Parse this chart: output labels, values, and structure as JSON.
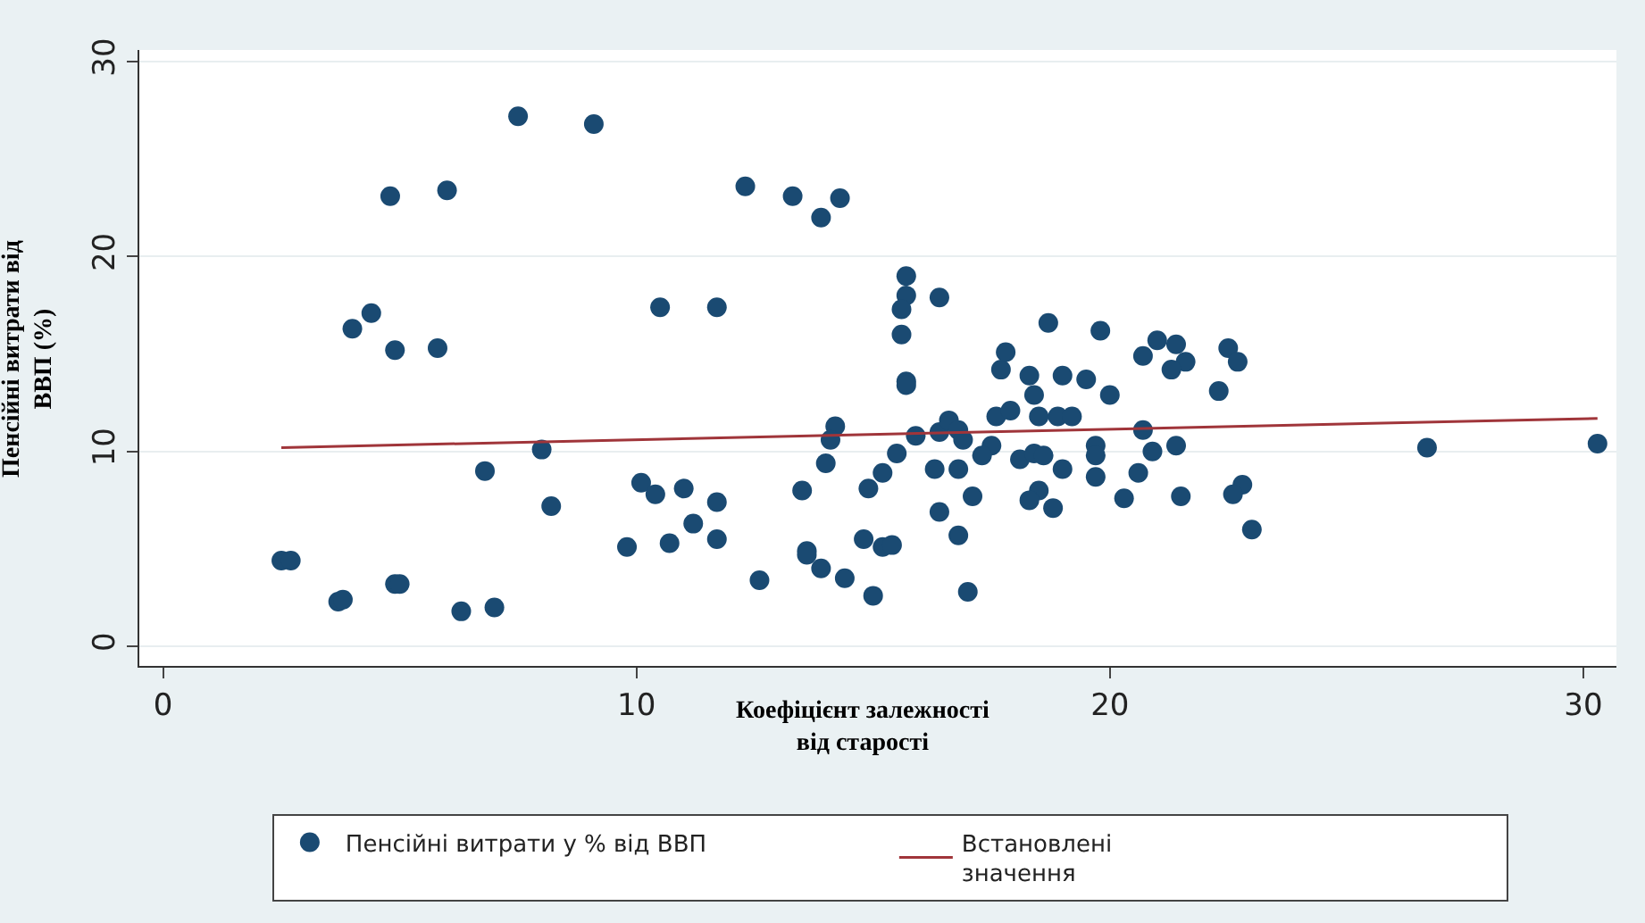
{
  "chart_data": {
    "type": "scatter",
    "xlabel": "Коефіцієнт залежності від старості",
    "ylabel": "Пенсійні витрати від ВВП (%)",
    "xlim": [
      -0.5,
      30.7
    ],
    "ylim": [
      -1,
      30.6
    ],
    "xticks": [
      0,
      10,
      20,
      30
    ],
    "yticks": [
      0,
      10,
      20,
      30
    ],
    "grid": "y",
    "legend": "bottom",
    "marker": "circle",
    "series": [
      {
        "name": "Пенсійні витрати у % від ВВП",
        "type": "scatter",
        "color": "#1a4a72",
        "x": [
          2.5,
          2.7,
          3.7,
          3.8,
          4.9,
          5.0,
          6.3,
          7.0,
          7.5,
          9.1,
          4.8,
          6.0,
          12.3,
          13.3,
          14.3,
          13.9,
          4.4,
          4.0,
          4.9,
          5.8,
          10.5,
          11.7,
          8.0,
          6.8,
          8.2,
          10.1,
          10.4,
          11.0,
          11.7,
          11.2,
          9.8,
          10.7,
          11.7,
          12.6,
          13.5,
          13.6,
          13.6,
          13.9,
          14.4,
          15.0,
          14.0,
          14.2,
          14.1,
          14.8,
          15.2,
          15.4,
          14.9,
          15.2,
          15.5,
          15.7,
          15.7,
          15.6,
          15.6,
          15.7,
          15.7,
          16.4,
          15.9,
          16.4,
          16.6,
          16.8,
          16.9,
          16.3,
          16.8,
          16.4,
          16.8,
          17.0,
          17.1,
          17.5,
          17.3,
          17.6,
          17.9,
          17.7,
          17.8,
          18.3,
          18.4,
          18.1,
          18.4,
          18.6,
          18.5,
          18.3,
          18.8,
          18.5,
          18.9,
          19.2,
          18.7,
          19.0,
          19.5,
          19.0,
          19.8,
          20.0,
          19.7,
          19.7,
          19.7,
          20.3,
          20.7,
          20.9,
          20.6,
          20.7,
          21.0,
          21.4,
          21.6,
          21.3,
          21.4,
          21.5,
          22.3,
          22.5,
          22.7,
          22.8,
          22.6,
          23.0,
          26.7,
          30.3
        ],
        "values": [
          4.4,
          4.4,
          2.3,
          2.4,
          3.2,
          3.2,
          1.8,
          2.0,
          27.2,
          26.8,
          23.1,
          23.4,
          23.6,
          23.1,
          23.0,
          22.0,
          17.1,
          16.3,
          15.2,
          15.3,
          17.4,
          17.4,
          10.1,
          9.0,
          7.2,
          8.4,
          7.8,
          8.1,
          7.4,
          6.3,
          5.1,
          5.3,
          5.5,
          3.4,
          8.0,
          4.9,
          4.7,
          4.0,
          3.5,
          2.6,
          9.4,
          11.3,
          10.6,
          5.5,
          5.1,
          5.2,
          8.1,
          8.9,
          9.9,
          19.0,
          18.0,
          17.3,
          16.0,
          13.6,
          13.4,
          17.9,
          10.8,
          11.0,
          11.6,
          11.1,
          10.6,
          9.1,
          9.1,
          6.9,
          5.7,
          2.8,
          7.7,
          10.3,
          9.8,
          11.8,
          12.1,
          14.2,
          15.1,
          13.9,
          12.9,
          9.6,
          9.9,
          9.8,
          8.0,
          7.5,
          7.1,
          11.8,
          11.8,
          11.8,
          16.6,
          13.9,
          13.7,
          9.1,
          16.2,
          12.9,
          10.3,
          9.8,
          8.7,
          7.6,
          11.1,
          10.0,
          8.9,
          14.9,
          15.7,
          15.5,
          14.6,
          14.2,
          10.3,
          7.7,
          13.1,
          15.3,
          14.6,
          8.3,
          7.8,
          6.0,
          10.2,
          10.4
        ]
      },
      {
        "name": "Встановлені значення",
        "type": "line",
        "color": "#a0353a",
        "marker": "none",
        "line_style": "solid",
        "x": [
          2.5,
          30.3
        ],
        "values": [
          10.2,
          11.7
        ]
      }
    ]
  }
}
